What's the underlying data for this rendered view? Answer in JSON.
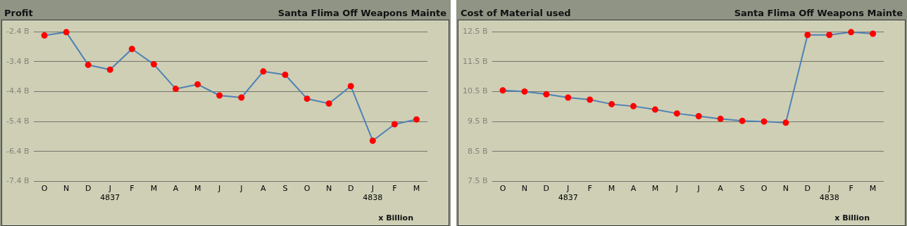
{
  "chart_data": [
    {
      "type": "line",
      "title": "Profit",
      "subtitle": "Santa Flima Off Weapons Mainte",
      "categories": [
        "O",
        "N",
        "D",
        "J\n4837",
        "F",
        "M",
        "A",
        "M",
        "J",
        "J",
        "A",
        "S",
        "O",
        "N",
        "D",
        "J\n4838",
        "F",
        "M"
      ],
      "series": [
        {
          "color": "#4f81b5",
          "values": [
            -2.53,
            -2.42,
            -3.51,
            -3.67,
            -2.98,
            -3.49,
            -4.31,
            -4.16,
            -4.53,
            -4.6,
            -3.73,
            -3.84,
            -4.64,
            -4.8,
            -4.22,
            -6.04,
            -5.49,
            -5.33
          ]
        }
      ],
      "marker": "circle",
      "grid": "y",
      "ylim": [
        -7.4,
        -2.4
      ],
      "yticks": [
        {
          "value": -7.4,
          "label": "-7.4 B"
        },
        {
          "value": -6.4,
          "label": "-6.4 B"
        },
        {
          "value": -5.4,
          "label": "-5.4 B"
        },
        {
          "value": -4.4,
          "label": "-4.4 B"
        },
        {
          "value": -3.4,
          "label": "-3.4 B"
        },
        {
          "value": -2.4,
          "label": "-2.4 B"
        }
      ],
      "annotations": [
        "x Billion"
      ]
    },
    {
      "type": "line",
      "title": "Cost of Material used",
      "subtitle": "Santa Flima Off Weapons Mainte",
      "categories": [
        "O",
        "N",
        "D",
        "J\n4837",
        "F",
        "M",
        "A",
        "M",
        "J",
        "J",
        "A",
        "S",
        "O",
        "N",
        "D",
        "J\n4838",
        "F",
        "M"
      ],
      "series": [
        {
          "color": "#4f81b5",
          "values": [
            10.54,
            10.5,
            10.41,
            10.3,
            10.23,
            10.08,
            10.01,
            9.9,
            9.77,
            9.68,
            9.59,
            9.52,
            9.5,
            9.46,
            12.39,
            12.39,
            12.48,
            12.43
          ]
        }
      ],
      "marker": "circle",
      "grid": "y",
      "ylim": [
        7.5,
        12.5
      ],
      "yticks": [
        {
          "value": 7.5,
          "label": "7.5 B"
        },
        {
          "value": 8.5,
          "label": "8.5 B"
        },
        {
          "value": 9.5,
          "label": "9.5 B"
        },
        {
          "value": 10.5,
          "label": "10.5 B"
        },
        {
          "value": 11.5,
          "label": "11.5 B"
        },
        {
          "value": 12.5,
          "label": "12.5 B"
        }
      ],
      "annotations": [
        "x Billion"
      ]
    }
  ]
}
